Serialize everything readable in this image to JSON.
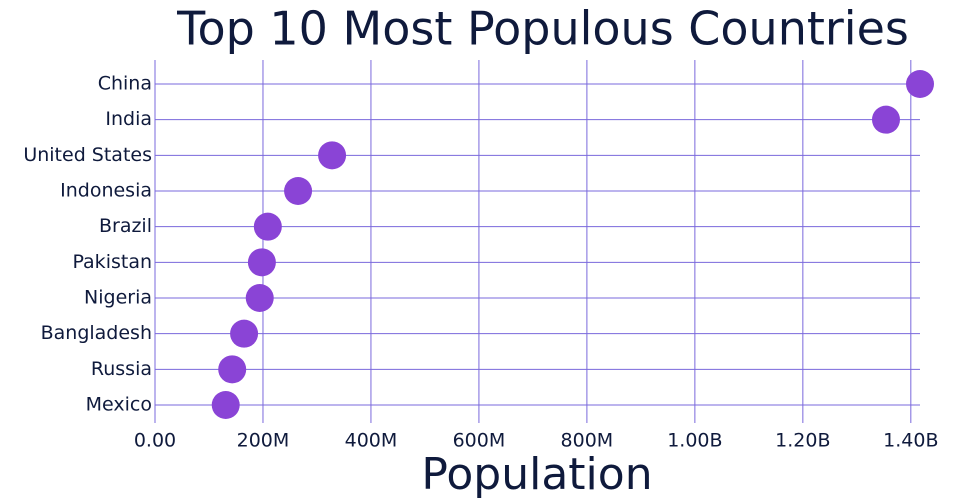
{
  "chart_data": {
    "type": "dot",
    "title": "Top 10 Most Populous Countries",
    "x_label": "Population",
    "categories": [
      "China",
      "India",
      "United States",
      "Indonesia",
      "Brazil",
      "Pakistan",
      "Nigeria",
      "Bangladesh",
      "Russia",
      "Mexico"
    ],
    "values": [
      1417000000,
      1354000000,
      328000000,
      265000000,
      209000000,
      198000000,
      194000000,
      165000000,
      143000000,
      131000000
    ],
    "color": "#8a44d6",
    "xlim": [
      0,
      1417000000
    ],
    "xticks": [
      {
        "value": 0,
        "label": "0.00"
      },
      {
        "value": 200000000,
        "label": "200M"
      },
      {
        "value": 400000000,
        "label": "400M"
      },
      {
        "value": 600000000,
        "label": "600M"
      },
      {
        "value": 800000000,
        "label": "800M"
      },
      {
        "value": 1000000000,
        "label": "1.00B"
      },
      {
        "value": 1200000000,
        "label": "1.20B"
      },
      {
        "value": 1400000000,
        "label": "1.40B"
      }
    ],
    "grid": true
  }
}
